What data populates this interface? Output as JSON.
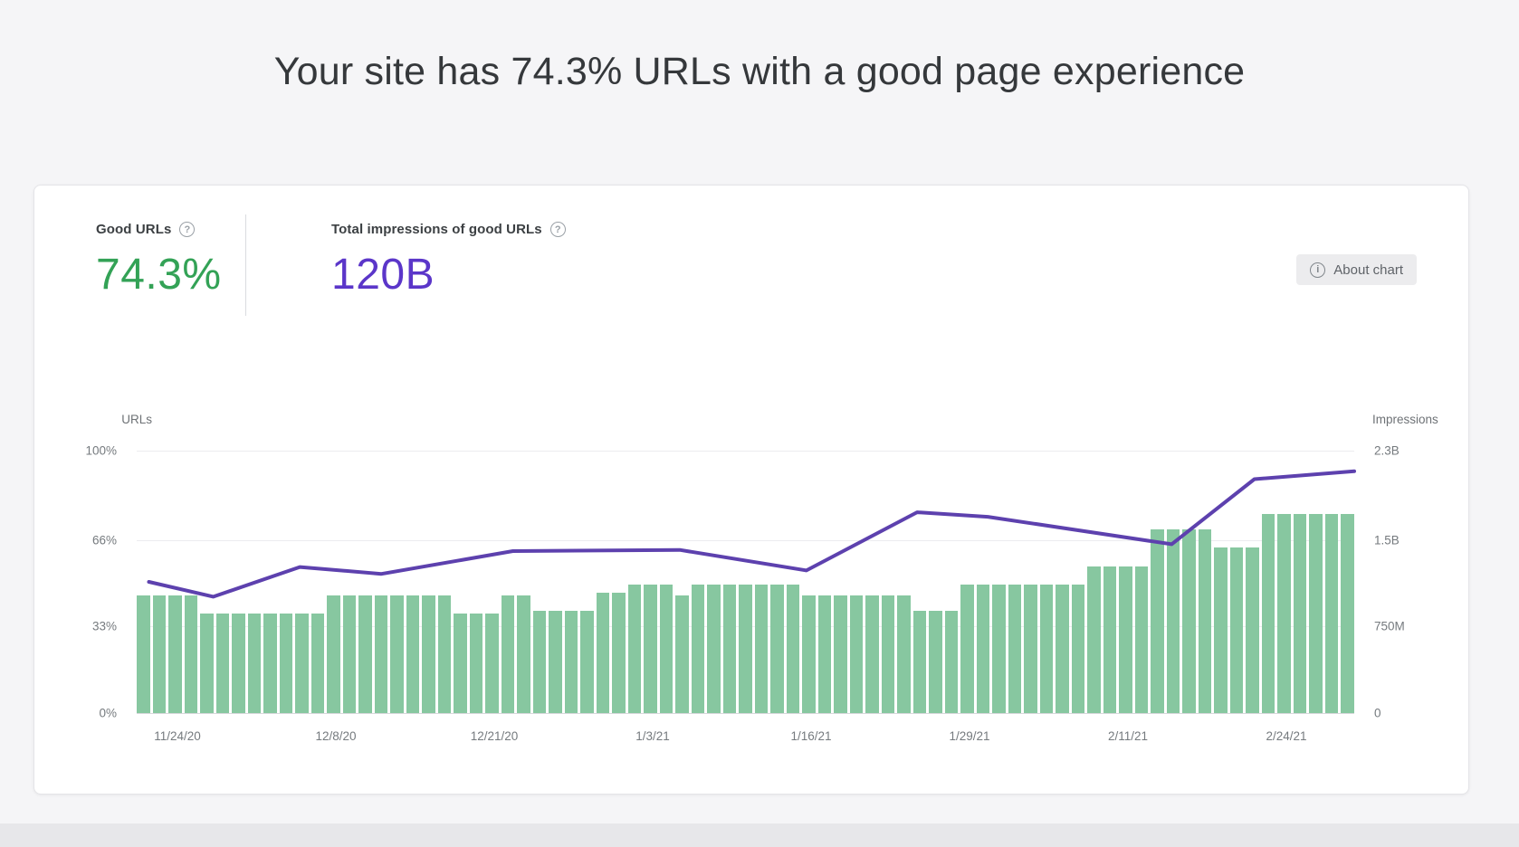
{
  "page": {
    "title": "Your site has 74.3% URLs with a good page experience",
    "background_color": "#f5f5f7"
  },
  "card": {
    "metrics": [
      {
        "label": "Good URLs",
        "help_icon": "?",
        "value": "74.3%",
        "value_color": "#33a256"
      },
      {
        "label": "Total impressions of good URLs",
        "help_icon": "?",
        "value": "120B",
        "value_color": "#5b36c9"
      }
    ],
    "about_chart": {
      "icon": "i",
      "label": "About chart"
    }
  },
  "chart_data": {
    "type": "bar+line",
    "left_axis": {
      "title": "URLs",
      "range_pct": [
        0,
        100
      ]
    },
    "right_axis": {
      "title": "Impressions",
      "range": [
        0,
        2300000000
      ]
    },
    "gridlines": [
      {
        "left_label": "100%",
        "right_label": "2.3B",
        "pct": 100
      },
      {
        "left_label": "66%",
        "right_label": "1.5B",
        "pct": 66
      },
      {
        "left_label": "33%",
        "right_label": "750M",
        "pct": 33
      },
      {
        "left_label": "0%",
        "right_label": "0",
        "pct": 0
      }
    ],
    "x_ticks": [
      "11/24/20",
      "12/8/20",
      "12/21/20",
      "1/3/21",
      "1/16/21",
      "1/29/21",
      "2/11/21",
      "2/24/21"
    ],
    "bars": {
      "series_name": "Good URLs",
      "unit": "% of URLs",
      "color": "#87c7a0",
      "values": [
        45,
        45,
        45,
        45,
        38,
        38,
        38,
        38,
        38,
        38,
        38,
        38,
        45,
        45,
        45,
        45,
        45,
        45,
        45,
        45,
        38,
        38,
        38,
        45,
        45,
        39,
        39,
        39,
        39,
        46,
        46,
        49,
        49,
        49,
        45,
        49,
        49,
        49,
        49,
        49,
        49,
        49,
        45,
        45,
        45,
        45,
        45,
        45,
        45,
        39,
        39,
        39,
        49,
        49,
        49,
        49,
        49,
        49,
        49,
        49,
        56,
        56,
        56,
        56,
        70,
        70,
        70,
        70,
        63,
        63,
        63,
        76,
        76,
        76,
        76,
        76,
        76
      ]
    },
    "line": {
      "series_name": "Impressions",
      "unit": "billions",
      "color": "#5d41ae",
      "axis_max_billions": 2.3,
      "points": [
        {
          "x": 0.01,
          "b": 1.15
        },
        {
          "x": 0.063,
          "b": 1.02
        },
        {
          "x": 0.134,
          "b": 1.28
        },
        {
          "x": 0.201,
          "b": 1.22
        },
        {
          "x": 0.309,
          "b": 1.42
        },
        {
          "x": 0.446,
          "b": 1.43
        },
        {
          "x": 0.55,
          "b": 1.25
        },
        {
          "x": 0.641,
          "b": 1.76
        },
        {
          "x": 0.699,
          "b": 1.72
        },
        {
          "x": 0.85,
          "b": 1.48
        },
        {
          "x": 0.918,
          "b": 2.05
        },
        {
          "x": 1.0,
          "b": 2.12
        }
      ]
    }
  }
}
